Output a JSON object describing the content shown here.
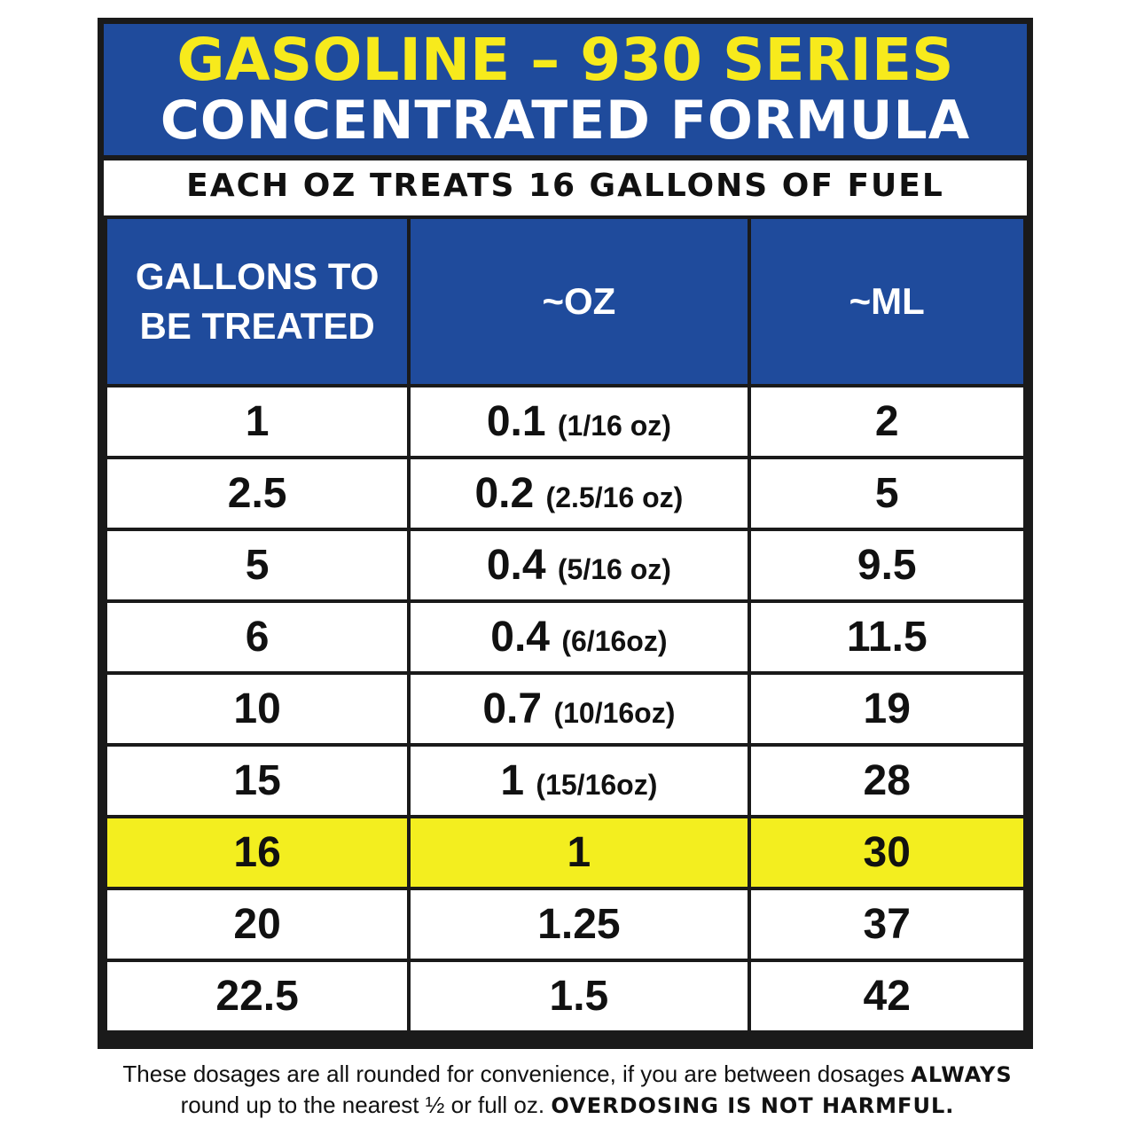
{
  "header": {
    "title": "GASOLINE – 930 SERIES",
    "subtitle": "CONCENTRATED FORMULA",
    "tagline": "EACH OZ TREATS 16 GALLONS OF FUEL"
  },
  "table": {
    "columns": [
      "GALLONS TO BE TREATED",
      "~OZ",
      "~ML"
    ],
    "rows": [
      {
        "gallons": "1",
        "oz": "0.1",
        "oz_note": "(1/16 oz)",
        "ml": "2"
      },
      {
        "gallons": "2.5",
        "oz": "0.2",
        "oz_note": "(2.5/16 oz)",
        "ml": "5"
      },
      {
        "gallons": "5",
        "oz": "0.4",
        "oz_note": "(5/16 oz)",
        "ml": "9.5"
      },
      {
        "gallons": "6",
        "oz": "0.4",
        "oz_note": "(6/16oz)",
        "ml": "11.5"
      },
      {
        "gallons": "10",
        "oz": "0.7",
        "oz_note": "(10/16oz)",
        "ml": "19"
      },
      {
        "gallons": "15",
        "oz": "1",
        "oz_note": "(15/16oz)",
        "ml": "28"
      },
      {
        "gallons": "16",
        "oz": "1",
        "ml": "30"
      },
      {
        "gallons": "20",
        "oz": "1.25",
        "ml": "37"
      },
      {
        "gallons": "22.5",
        "oz": "1.5",
        "ml": "42"
      }
    ]
  },
  "footer": {
    "text1": "These dosages are all rounded for convenience, if you are between dosages",
    "emphasis1": "ALWAYS",
    "text2": "round up to the nearest ½ or full oz.",
    "emphasis2": "OVERDOSING IS NOT HARMFUL."
  }
}
